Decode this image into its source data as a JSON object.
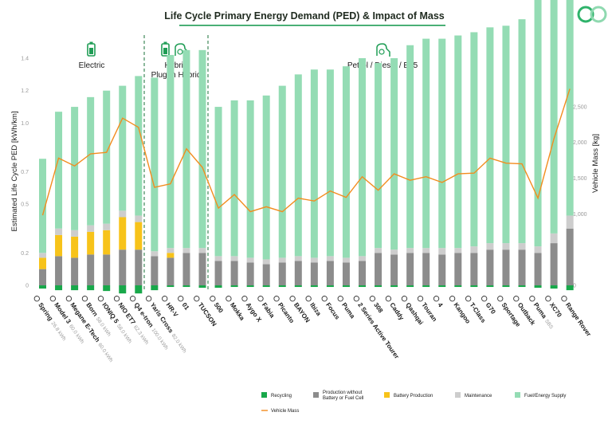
{
  "chart_data": {
    "type": "bar",
    "stacked": true,
    "title": "Life Cycle Primary Energy Demand (PED) & Impact of Mass",
    "ylabel": "Estimated Life Cycle PED [kWh/km]",
    "y2label": "Vehicle Mass [kg]",
    "ylim": [
      0,
      1.4
    ],
    "y_ticks": [
      "0",
      "0.2",
      "0.5",
      "0.7",
      "1.0",
      "1.2",
      "1.4"
    ],
    "y_tick_values": [
      0,
      0.2,
      0.5,
      0.7,
      1.0,
      1.2,
      1.4
    ],
    "y2lim": [
      0,
      3100
    ],
    "y2_ticks": [
      "0",
      "1,000",
      "1,500",
      "2,000",
      "2,500"
    ],
    "y2_tick_values": [
      0,
      1000,
      1500,
      2000,
      2500
    ],
    "groups": [
      {
        "label": "Electric",
        "start": 0,
        "end": 6
      },
      {
        "label": "Hybrid",
        "label2": "Plug-in Hybrid",
        "start": 7,
        "end": 10
      },
      {
        "label": "Petrol / Diesel / E85",
        "start": 11,
        "end": 32
      }
    ],
    "categories": [
      "Spring",
      "Model 3",
      "Megane E-Tech",
      "Born",
      "IONIQ 5",
      "NIO ET7",
      "Q4 e-tron",
      "Yaris Cross",
      "HR-V",
      "01",
      "TUCSON",
      "500",
      "Mokka",
      "Aygo X",
      "Fabia",
      "Picanto",
      "BAYON",
      "Ibiza",
      "Focus",
      "Puma",
      "2 Series Active Tourer",
      "308",
      "Caddy",
      "Qashqai",
      "Touran",
      "4",
      "Kangoo",
      "T-Class",
      "G70",
      "Sportage",
      "Outback",
      "Puma",
      "XC70",
      "Range Rover"
    ],
    "category_sublabels": [
      "26.8 kWh",
      "60.0 kWh",
      "60.0 kWh",
      "58.0 kWh",
      "58.0 kWh",
      "62.3 kWh",
      "100.0 kWh",
      "82.0 kWh",
      "",
      "",
      "",
      "",
      "",
      "",
      "",
      "",
      "",
      "",
      "",
      "",
      "",
      "",
      "",
      "",
      "",
      "",
      "",
      "",
      "",
      "",
      "",
      "SBS",
      "",
      ""
    ],
    "series": [
      {
        "name": "Recycling",
        "color": "#18a84a",
        "values": [
          -0.02,
          -0.03,
          -0.03,
          -0.03,
          -0.035,
          -0.05,
          -0.05,
          -0.03,
          -0.01,
          -0.01,
          -0.015,
          -0.015,
          -0.01,
          -0.01,
          -0.01,
          -0.01,
          -0.01,
          -0.01,
          -0.01,
          -0.01,
          -0.01,
          -0.01,
          -0.01,
          -0.01,
          -0.01,
          -0.01,
          -0.01,
          -0.01,
          -0.01,
          -0.01,
          -0.01,
          -0.015,
          -0.02,
          -0.03
        ]
      },
      {
        "name": "Production without Battery or Fuel Cell",
        "color": "#8c8c8c",
        "values": [
          0.1,
          0.18,
          0.17,
          0.19,
          0.19,
          0.22,
          0.22,
          0.18,
          0.17,
          0.2,
          0.2,
          0.15,
          0.15,
          0.14,
          0.13,
          0.14,
          0.15,
          0.14,
          0.15,
          0.14,
          0.15,
          0.2,
          0.19,
          0.2,
          0.2,
          0.19,
          0.2,
          0.2,
          0.22,
          0.22,
          0.22,
          0.2,
          0.26,
          0.35
        ]
      },
      {
        "name": "Battery Production",
        "color": "#f7c31a",
        "values": [
          0.07,
          0.13,
          0.13,
          0.14,
          0.15,
          0.2,
          0.17,
          0.0,
          0.03,
          0.0,
          0.0,
          0.0,
          0.0,
          0.0,
          0.0,
          0.0,
          0.0,
          0.0,
          0.0,
          0.0,
          0.0,
          0.0,
          0.0,
          0.0,
          0.0,
          0.0,
          0.0,
          0.0,
          0.0,
          0.0,
          0.0,
          0.0,
          0.0,
          0.0
        ]
      },
      {
        "name": "Maintenance",
        "color": "#cdcdcd",
        "values": [
          0.03,
          0.04,
          0.04,
          0.04,
          0.04,
          0.04,
          0.04,
          0.03,
          0.03,
          0.03,
          0.03,
          0.03,
          0.03,
          0.03,
          0.03,
          0.03,
          0.03,
          0.03,
          0.03,
          0.03,
          0.03,
          0.03,
          0.03,
          0.03,
          0.03,
          0.04,
          0.03,
          0.04,
          0.04,
          0.04,
          0.04,
          0.04,
          0.06,
          0.08
        ]
      },
      {
        "name": "Fuel/Energy Supply",
        "color": "#94dcb4",
        "values": [
          0.58,
          0.72,
          0.76,
          0.79,
          0.82,
          0.77,
          0.86,
          1.07,
          1.19,
          1.22,
          1.22,
          0.92,
          0.96,
          0.97,
          1.01,
          1.06,
          1.12,
          1.16,
          1.15,
          1.18,
          1.22,
          1.14,
          1.18,
          1.25,
          1.29,
          1.29,
          1.31,
          1.32,
          1.33,
          1.34,
          1.38,
          1.61,
          1.69,
          1.57
        ]
      }
    ],
    "line": {
      "name": "Vehicle Mass",
      "color": "#f28c1e",
      "axis": "y2",
      "values": [
        980,
        1780,
        1670,
        1840,
        1860,
        2340,
        2210,
        1370,
        1420,
        1910,
        1650,
        1080,
        1270,
        1030,
        1100,
        1030,
        1220,
        1180,
        1320,
        1230,
        1520,
        1330,
        1560,
        1470,
        1520,
        1440,
        1560,
        1570,
        1780,
        1710,
        1700,
        1220,
        2050,
        2750
      ]
    },
    "legend": [
      "Recycling",
      "Production without Battery or Fuel Cell",
      "Battery Production",
      "Maintenance",
      "Fuel/Energy Supply",
      "Vehicle Mass"
    ],
    "legend_position": "bottom"
  },
  "colors": {
    "accent": "#1f9d55",
    "divider": "#2e7d4a",
    "title_underline": "#1f9d55"
  },
  "icons": [
    "battery-icon",
    "battery-icon",
    "fuel-pump-icon",
    "fuel-pump-icon",
    "brand-logo-icon"
  ]
}
